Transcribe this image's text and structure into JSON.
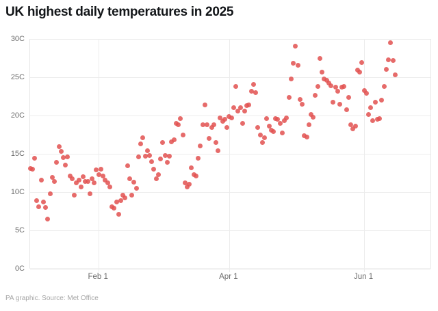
{
  "title": "UK highest daily temperatures in 2025",
  "footer": "PA graphic. Source: Met Office",
  "colors": {
    "dot": "#e25150",
    "title_text": "#121518",
    "axis_label_text": "#6d6d6d",
    "gridline": "#ececec",
    "axis_line": "#d5d5d5",
    "background": "#ffffff"
  },
  "chart_data": {
    "type": "scatter",
    "title": "UK highest daily temperatures in 2025",
    "xlabel": "",
    "ylabel": "",
    "legend": "none",
    "grid": "horizontal lines every 5C; vertical lines at labeled month ticks",
    "ylim": [
      0,
      30
    ],
    "y_tick_labels": [
      "30C",
      "25C",
      "20C",
      "15C",
      "10C",
      "5C",
      "0C"
    ],
    "y_tick_values": [
      30,
      25,
      20,
      15,
      10,
      5,
      0
    ],
    "x_axis": {
      "span_days": 181,
      "note": "axis runs Jan 1 to Jul 1 2025"
    },
    "x_ticks": [
      {
        "label": "Feb 1",
        "day": 32
      },
      {
        "label": "Apr 1",
        "day": 91
      },
      {
        "label": "Jun 1",
        "day": 152
      }
    ],
    "series_name": "UK highest daily temperature (C)",
    "point_format": [
      "day_of_year",
      "date",
      "temp_c"
    ],
    "points": [
      [
        1,
        "Jan 1",
        13.1
      ],
      [
        2,
        "Jan 2",
        13.0
      ],
      [
        3,
        "Jan 3",
        14.4
      ],
      [
        4,
        "Jan 4",
        8.9
      ],
      [
        5,
        "Jan 5",
        8.1
      ],
      [
        6,
        "Jan 6",
        11.6
      ],
      [
        7,
        "Jan 7",
        8.7
      ],
      [
        8,
        "Jan 8",
        8.0
      ],
      [
        9,
        "Jan 9",
        6.5
      ],
      [
        10,
        "Jan 10",
        9.8
      ],
      [
        11,
        "Jan 11",
        11.9
      ],
      [
        12,
        "Jan 12",
        11.4
      ],
      [
        13,
        "Jan 13",
        13.9
      ],
      [
        14,
        "Jan 14",
        15.9
      ],
      [
        15,
        "Jan 15",
        15.3
      ],
      [
        16,
        "Jan 16",
        14.5
      ],
      [
        17,
        "Jan 17",
        13.5
      ],
      [
        18,
        "Jan 18",
        14.6
      ],
      [
        19,
        "Jan 19",
        12.1
      ],
      [
        20,
        "Jan 20",
        11.7
      ],
      [
        21,
        "Jan 21",
        9.6
      ],
      [
        22,
        "Jan 22",
        11.2
      ],
      [
        23,
        "Jan 23",
        11.6
      ],
      [
        24,
        "Jan 24",
        10.7
      ],
      [
        25,
        "Jan 25",
        12.0
      ],
      [
        26,
        "Jan 26",
        11.4
      ],
      [
        27,
        "Jan 27",
        11.4
      ],
      [
        28,
        "Jan 28",
        9.8
      ],
      [
        29,
        "Jan 29",
        11.7
      ],
      [
        30,
        "Jan 30",
        11.2
      ],
      [
        31,
        "Jan 31",
        12.9
      ],
      [
        32,
        "Feb 1",
        12.3
      ],
      [
        33,
        "Feb 2",
        13.0
      ],
      [
        34,
        "Feb 3",
        12.1
      ],
      [
        35,
        "Feb 4",
        11.6
      ],
      [
        36,
        "Feb 5",
        11.2
      ],
      [
        37,
        "Feb 6",
        10.7
      ],
      [
        38,
        "Feb 7",
        8.1
      ],
      [
        39,
        "Feb 8",
        7.9
      ],
      [
        40,
        "Feb 9",
        8.7
      ],
      [
        41,
        "Feb 10",
        7.1
      ],
      [
        42,
        "Feb 11",
        8.9
      ],
      [
        43,
        "Feb 12",
        9.6
      ],
      [
        44,
        "Feb 13",
        9.2
      ],
      [
        45,
        "Feb 14",
        13.4
      ],
      [
        46,
        "Feb 15",
        11.7
      ],
      [
        47,
        "Feb 16",
        9.6
      ],
      [
        48,
        "Feb 17",
        11.3
      ],
      [
        49,
        "Feb 18",
        10.5
      ],
      [
        50,
        "Feb 19",
        14.6
      ],
      [
        51,
        "Feb 20",
        16.3
      ],
      [
        52,
        "Feb 21",
        17.1
      ],
      [
        53,
        "Feb 22",
        14.7
      ],
      [
        54,
        "Feb 23",
        15.4
      ],
      [
        55,
        "Feb 24",
        14.8
      ],
      [
        56,
        "Feb 25",
        14.0
      ],
      [
        57,
        "Feb 26",
        13.0
      ],
      [
        58,
        "Feb 27",
        11.7
      ],
      [
        59,
        "Feb 28",
        12.3
      ],
      [
        60,
        "Mar 1",
        14.3
      ],
      [
        61,
        "Mar 2",
        16.5
      ],
      [
        62,
        "Mar 3",
        14.8
      ],
      [
        63,
        "Mar 4",
        13.9
      ],
      [
        64,
        "Mar 5",
        14.7
      ],
      [
        65,
        "Mar 6",
        16.6
      ],
      [
        66,
        "Mar 7",
        16.8
      ],
      [
        67,
        "Mar 8",
        19.0
      ],
      [
        68,
        "Mar 9",
        18.8
      ],
      [
        69,
        "Mar 10",
        19.6
      ],
      [
        70,
        "Mar 11",
        17.5
      ],
      [
        71,
        "Mar 12",
        11.2
      ],
      [
        72,
        "Mar 13",
        10.7
      ],
      [
        73,
        "Mar 14",
        11.0
      ],
      [
        74,
        "Mar 15",
        13.2
      ],
      [
        75,
        "Mar 16",
        12.3
      ],
      [
        76,
        "Mar 17",
        12.1
      ],
      [
        77,
        "Mar 18",
        14.4
      ],
      [
        78,
        "Mar 19",
        16.0
      ],
      [
        79,
        "Mar 20",
        18.8
      ],
      [
        80,
        "Mar 21",
        21.4
      ],
      [
        81,
        "Mar 22",
        18.8
      ],
      [
        82,
        "Mar 23",
        17.0
      ],
      [
        83,
        "Mar 24",
        18.4
      ],
      [
        84,
        "Mar 25",
        18.8
      ],
      [
        85,
        "Mar 26",
        16.5
      ],
      [
        86,
        "Mar 27",
        15.4
      ],
      [
        87,
        "Mar 28",
        19.7
      ],
      [
        88,
        "Mar 29",
        19.2
      ],
      [
        89,
        "Mar 30",
        19.5
      ],
      [
        90,
        "Mar 31",
        18.4
      ],
      [
        91,
        "Apr 1",
        19.9
      ],
      [
        92,
        "Apr 2",
        19.7
      ],
      [
        93,
        "Apr 3",
        21.0
      ],
      [
        94,
        "Apr 4",
        23.8
      ],
      [
        95,
        "Apr 5",
        20.6
      ],
      [
        96,
        "Apr 6",
        21.0
      ],
      [
        97,
        "Apr 7",
        19.0
      ],
      [
        98,
        "Apr 8",
        20.6
      ],
      [
        99,
        "Apr 9",
        21.3
      ],
      [
        100,
        "Apr 10",
        21.4
      ],
      [
        101,
        "Apr 11",
        23.2
      ],
      [
        102,
        "Apr 12",
        24.1
      ],
      [
        103,
        "Apr 13",
        23.0
      ],
      [
        104,
        "Apr 14",
        18.4
      ],
      [
        105,
        "Apr 15",
        17.5
      ],
      [
        106,
        "Apr 16",
        16.5
      ],
      [
        107,
        "Apr 17",
        17.1
      ],
      [
        108,
        "Apr 18",
        19.6
      ],
      [
        109,
        "Apr 19",
        18.6
      ],
      [
        110,
        "Apr 20",
        18.1
      ],
      [
        111,
        "Apr 21",
        17.9
      ],
      [
        112,
        "Apr 22",
        19.6
      ],
      [
        113,
        "Apr 23",
        19.5
      ],
      [
        114,
        "Apr 24",
        19.0
      ],
      [
        115,
        "Apr 25",
        17.7
      ],
      [
        116,
        "Apr 26",
        19.3
      ],
      [
        117,
        "Apr 27",
        19.7
      ],
      [
        118,
        "Apr 28",
        22.4
      ],
      [
        119,
        "Apr 29",
        24.8
      ],
      [
        120,
        "Apr 30",
        26.8
      ],
      [
        121,
        "May 1",
        29.1
      ],
      [
        122,
        "May 2",
        26.6
      ],
      [
        123,
        "May 3",
        22.1
      ],
      [
        124,
        "May 4",
        21.5
      ],
      [
        125,
        "May 5",
        17.4
      ],
      [
        126,
        "May 6",
        17.2
      ],
      [
        127,
        "May 7",
        18.8
      ],
      [
        128,
        "May 8",
        20.1
      ],
      [
        129,
        "May 9",
        19.8
      ],
      [
        130,
        "May 10",
        22.6
      ],
      [
        131,
        "May 11",
        23.8
      ],
      [
        132,
        "May 12",
        27.5
      ],
      [
        133,
        "May 13",
        25.7
      ],
      [
        134,
        "May 14",
        24.8
      ],
      [
        135,
        "May 15",
        24.6
      ],
      [
        136,
        "May 16",
        24.2
      ],
      [
        137,
        "May 17",
        23.9
      ],
      [
        138,
        "May 18",
        21.7
      ],
      [
        139,
        "May 19",
        23.7
      ],
      [
        140,
        "May 20",
        23.2
      ],
      [
        141,
        "May 21",
        21.5
      ],
      [
        142,
        "May 22",
        23.7
      ],
      [
        143,
        "May 23",
        23.8
      ],
      [
        144,
        "May 24",
        20.8
      ],
      [
        145,
        "May 25",
        22.4
      ],
      [
        146,
        "May 26",
        18.8
      ],
      [
        147,
        "May 27",
        18.3
      ],
      [
        148,
        "May 28",
        18.6
      ],
      [
        149,
        "May 29",
        25.9
      ],
      [
        150,
        "May 30",
        25.7
      ],
      [
        151,
        "May 31",
        26.9
      ],
      [
        152,
        "Jun 1",
        23.3
      ],
      [
        153,
        "Jun 2",
        22.9
      ],
      [
        154,
        "Jun 3",
        20.1
      ],
      [
        155,
        "Jun 4",
        21.0
      ],
      [
        156,
        "Jun 5",
        19.3
      ],
      [
        157,
        "Jun 6",
        21.7
      ],
      [
        158,
        "Jun 7",
        19.5
      ],
      [
        159,
        "Jun 8",
        19.6
      ],
      [
        160,
        "Jun 9",
        22.0
      ],
      [
        161,
        "Jun 10",
        23.8
      ],
      [
        162,
        "Jun 11",
        26.0
      ],
      [
        163,
        "Jun 12",
        27.3
      ],
      [
        164,
        "Jun 13",
        29.5
      ],
      [
        165,
        "Jun 14",
        27.2
      ],
      [
        166,
        "Jun 15",
        25.3
      ]
    ]
  }
}
